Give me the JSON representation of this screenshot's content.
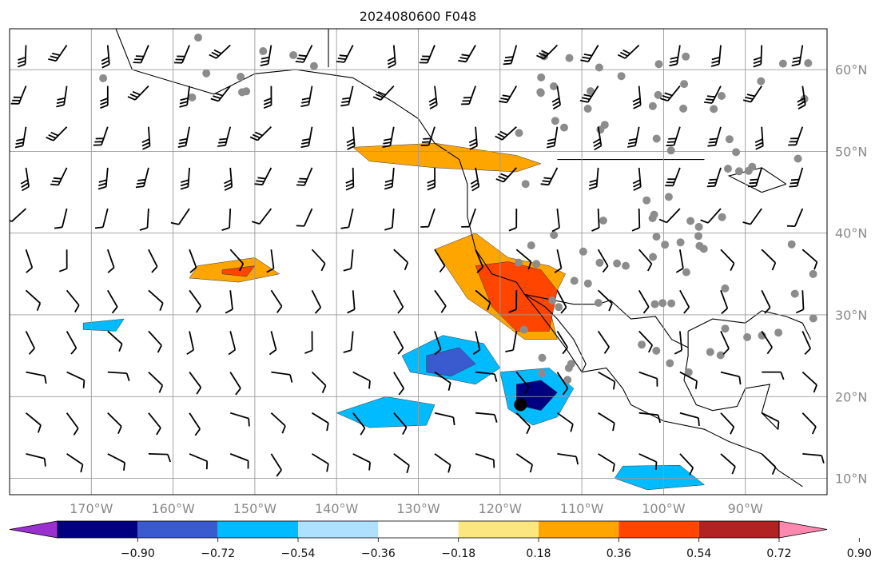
{
  "title": "2024080600 F048",
  "map": {
    "lon_range": [
      -180,
      -80
    ],
    "lat_range": [
      8,
      65
    ],
    "lon_ticks": [
      {
        "value": -170,
        "label": "170°W"
      },
      {
        "value": -160,
        "label": "160°W"
      },
      {
        "value": -150,
        "label": "150°W"
      },
      {
        "value": -140,
        "label": "140°W"
      },
      {
        "value": -130,
        "label": "130°W"
      },
      {
        "value": -120,
        "label": "120°W"
      },
      {
        "value": -110,
        "label": "110°W"
      },
      {
        "value": -100,
        "label": "100°W"
      },
      {
        "value": -90,
        "label": "90°W"
      }
    ],
    "lat_ticks": [
      {
        "value": 60,
        "label": "60°N"
      },
      {
        "value": 50,
        "label": "50°N"
      },
      {
        "value": 40,
        "label": "40°N"
      },
      {
        "value": 30,
        "label": "30°N"
      },
      {
        "value": 20,
        "label": "20°N"
      },
      {
        "value": 10,
        "label": "10°N"
      }
    ],
    "grid": true,
    "barbs": "wind barbs on regular grid",
    "observation_markers": "gray filled circles over land"
  },
  "colorbar": {
    "tick_labels": [
      "−0.90",
      "−0.72",
      "−0.54",
      "−0.36",
      "−0.18",
      "0.18",
      "0.36",
      "0.54",
      "0.72",
      "0.90"
    ],
    "colors": [
      "#9b30d0",
      "#000080",
      "#3a5bd0",
      "#00bbff",
      "#aee0ff",
      "#ffffff",
      "#fce680",
      "#ffa500",
      "#ff4500",
      "#b22222",
      "#ff88b0"
    ],
    "extend": "both"
  }
}
